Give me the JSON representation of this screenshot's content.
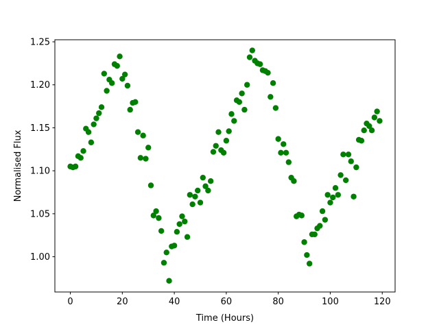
{
  "chart_data": {
    "type": "scatter",
    "x_label": "Time (Hours)",
    "y_label": "Normalised Flux",
    "x": [
      0,
      1,
      2,
      3,
      4,
      5,
      6,
      7,
      8,
      9,
      10,
      11,
      12,
      13,
      14,
      15,
      16,
      17,
      18,
      19,
      20,
      21,
      22,
      23,
      24,
      25,
      26,
      27,
      28,
      29,
      30,
      31,
      32,
      33,
      34,
      35,
      36,
      37,
      38,
      39,
      40,
      41,
      42,
      43,
      44,
      45,
      46,
      47,
      48,
      49,
      50,
      51,
      52,
      53,
      54,
      55,
      56,
      57,
      58,
      59,
      60,
      61,
      62,
      63,
      64,
      65,
      66,
      67,
      68,
      69,
      70,
      71,
      72,
      73,
      74,
      75,
      76,
      77,
      78,
      79,
      80,
      81,
      82,
      83,
      84,
      85,
      86,
      87,
      88,
      89,
      90,
      91,
      92,
      93,
      94,
      95,
      96,
      97,
      98,
      99,
      100,
      101,
      102,
      103,
      104,
      105,
      106,
      107,
      108,
      109,
      110,
      111,
      112,
      113,
      114,
      115,
      116,
      117,
      118,
      119
    ],
    "series": [
      {
        "color": "#008000",
        "values": [
          1.105,
          1.104,
          1.105,
          1.117,
          1.115,
          1.123,
          1.149,
          1.145,
          1.133,
          1.154,
          1.161,
          1.167,
          1.174,
          1.213,
          1.193,
          1.206,
          1.202,
          1.224,
          1.222,
          1.233,
          1.207,
          1.212,
          1.199,
          1.171,
          1.179,
          1.18,
          1.145,
          1.115,
          1.141,
          1.114,
          1.127,
          1.083,
          1.048,
          1.053,
          1.045,
          1.03,
          0.993,
          1.005,
          0.972,
          1.012,
          1.013,
          1.029,
          1.038,
          1.047,
          1.041,
          1.023,
          1.072,
          1.061,
          1.07,
          1.077,
          1.063,
          1.092,
          1.082,
          1.077,
          1.088,
          1.122,
          1.129,
          1.145,
          1.124,
          1.121,
          1.135,
          1.146,
          1.166,
          1.158,
          1.182,
          1.18,
          1.19,
          1.171,
          1.2,
          1.232,
          1.24,
          1.228,
          1.225,
          1.224,
          1.217,
          1.216,
          1.214,
          1.186,
          1.202,
          1.173,
          1.137,
          1.121,
          1.131,
          1.121,
          1.11,
          1.092,
          1.088,
          1.047,
          1.049,
          1.048,
          1.017,
          1.002,
          0.992,
          1.026,
          1.026,
          1.033,
          1.036,
          1.053,
          1.043,
          1.072,
          1.063,
          1.069,
          1.08,
          1.072,
          1.095,
          1.119,
          1.089,
          1.119,
          1.111,
          1.07,
          1.104,
          1.136,
          1.135,
          1.147,
          1.155,
          1.152,
          1.147,
          1.162,
          1.169,
          1.158
        ]
      }
    ],
    "xlim": [
      -5.95,
      124.95
    ],
    "ylim": [
      0.959,
      1.2524
    ],
    "xticks": [
      0,
      20,
      40,
      60,
      80,
      100,
      120
    ],
    "yticks": [
      {
        "value": 1.0,
        "label": "1.00"
      },
      1.05,
      {
        "value": 1.1,
        "label": "1.10"
      },
      1.15,
      {
        "value": 1.2,
        "label": "1.20"
      },
      1.25
    ]
  }
}
